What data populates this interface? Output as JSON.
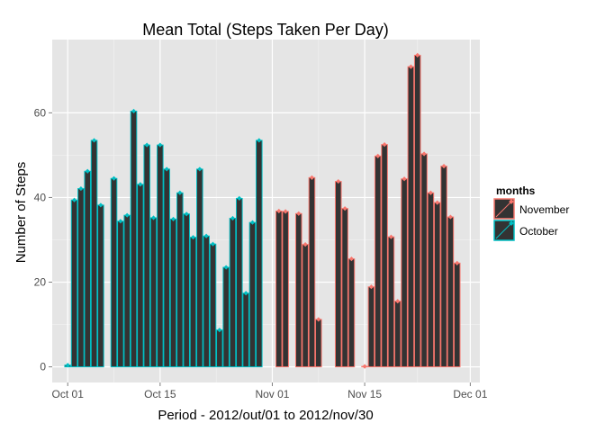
{
  "chart_data": {
    "type": "bar",
    "title": "Mean Total (Steps Taken Per Day)",
    "xlabel": "Period - 2012/out/01 to 2012/nov/30",
    "ylabel": "Number of Steps",
    "ylim": [
      -3.7,
      77.3
    ],
    "y_ticks": [
      0,
      20,
      40,
      60
    ],
    "x_ticks": [
      {
        "day": 0,
        "label": "Oct 01"
      },
      {
        "day": 14,
        "label": "Oct 15"
      },
      {
        "day": 31,
        "label": "Nov 01"
      },
      {
        "day": 45,
        "label": "Nov 15"
      },
      {
        "day": 61,
        "label": "Dec 01"
      }
    ],
    "grid": true,
    "legend": {
      "title": "months",
      "position": "right",
      "entries": [
        {
          "label": "November",
          "color": "#F8766D"
        },
        {
          "label": "October",
          "color": "#00BFC4"
        }
      ]
    },
    "colors": {
      "bar_fill": "#333333",
      "panel": "#E5E5E5",
      "grid": "#FFFFFF",
      "November": "#F8766D",
      "October": "#00BFC4"
    },
    "series": [
      {
        "name": "October",
        "days": [
          1,
          2,
          3,
          4,
          5,
          6,
          7,
          8,
          9,
          10,
          11,
          12,
          13,
          14,
          15,
          16,
          17,
          18,
          19,
          20,
          21,
          22,
          23,
          24,
          25,
          26,
          27,
          28,
          29,
          30,
          31
        ],
        "values": [
          0.4,
          39.4,
          42.1,
          46.2,
          53.5,
          38.2,
          null,
          44.5,
          34.4,
          35.8,
          60.4,
          43.1,
          52.4,
          35.2,
          52.4,
          46.7,
          34.9,
          41.1,
          36.1,
          30.6,
          46.7,
          30.9,
          29.0,
          8.7,
          23.5,
          35.1,
          39.8,
          17.4,
          34.1,
          53.5,
          null
        ]
      },
      {
        "name": "November",
        "days": [
          1,
          2,
          3,
          4,
          5,
          6,
          7,
          8,
          9,
          10,
          11,
          12,
          13,
          14,
          15,
          16,
          17,
          18,
          19,
          20,
          21,
          22,
          23,
          24,
          25,
          26,
          27,
          28,
          29,
          30
        ],
        "values": [
          null,
          36.8,
          36.7,
          null,
          36.2,
          28.9,
          44.7,
          11.2,
          null,
          null,
          43.8,
          37.4,
          25.5,
          null,
          0.1,
          18.9,
          49.8,
          52.5,
          30.7,
          15.5,
          44.4,
          70.9,
          73.6,
          50.3,
          41.1,
          38.8,
          47.4,
          35.4,
          24.5,
          null
        ]
      }
    ]
  }
}
